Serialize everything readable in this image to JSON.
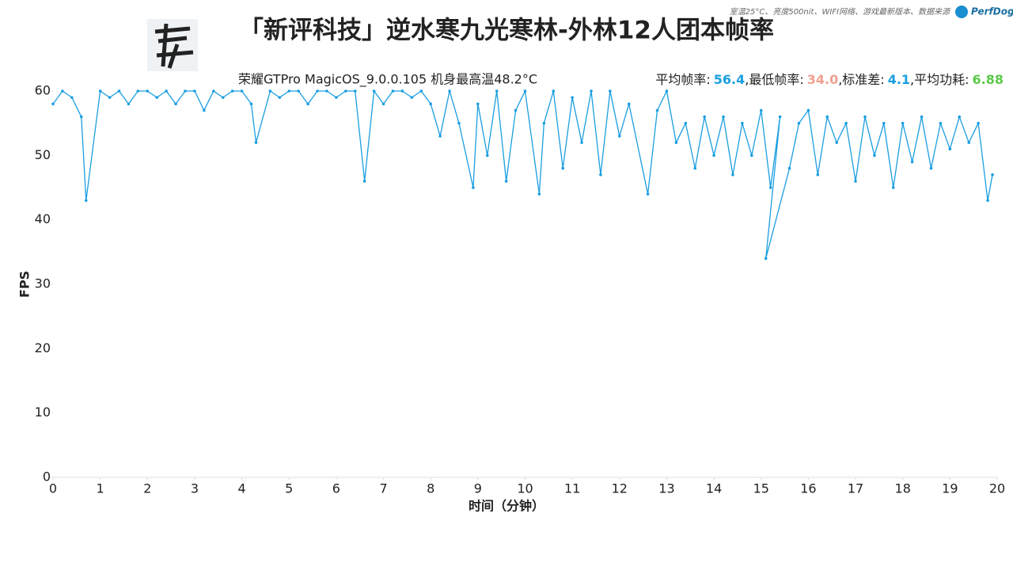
{
  "chart_data": {
    "type": "line",
    "title": "「新评科技」逆水寒九光寒林-外林12人团本帧率",
    "subtitle": "荣耀GTPro MagicOS_9.0.0.105 机身最高温48.2°C",
    "note": "室温25°C、亮度500nit、WIFI网络、游戏最新版本、数据来源",
    "brand": "PerfDog",
    "stats": [
      {
        "label": "平均帧率:",
        "value": 56.4,
        "color": "#1a9ee0"
      },
      {
        "label": ",最低帧率:",
        "value": {
          "value": 34,
          "label": "34.0"
        },
        "color": "#f0a090"
      },
      {
        "label": ",标准差:",
        "value": 4.1,
        "color": "#1a9ee0"
      },
      {
        "label": ",平均功耗:",
        "value": 6.88,
        "color": "#5cc94a"
      }
    ],
    "x_label": "时间（分钟）",
    "y_label": "FPS",
    "x": [
      0,
      0.2,
      0.4,
      0.6,
      0.7,
      1,
      1.2,
      1.4,
      1.6,
      1.8,
      2,
      2.2,
      2.4,
      2.6,
      2.8,
      3,
      3.2,
      3.4,
      3.6,
      3.8,
      4,
      4.2,
      4.3,
      4.6,
      4.8,
      5,
      5.2,
      5.4,
      5.6,
      5.8,
      6,
      6.2,
      6.4,
      6.6,
      6.8,
      7,
      7.2,
      7.4,
      7.6,
      7.8,
      8,
      8.2,
      8.4,
      8.6,
      8.9,
      9.0,
      9.2,
      9.4,
      9.6,
      9.8,
      10,
      10.3,
      10.4,
      10.6,
      10.8,
      11,
      11.2,
      11.4,
      11.6,
      11.8,
      12,
      12.2,
      12.6,
      12.8,
      13,
      13.2,
      13.4,
      13.6,
      13.8,
      14,
      14.2,
      14.4,
      14.6,
      14.8,
      15,
      15.2,
      15.4,
      15.1,
      15.6,
      15.8,
      16,
      16.2,
      16.4,
      16.6,
      16.8,
      17,
      17.2,
      17.4,
      17.6,
      17.8,
      18,
      18.2,
      18.4,
      18.6,
      18.8,
      19,
      19.2,
      19.4,
      19.6,
      19.8,
      19.9
    ],
    "series": [
      {
        "name": "FPS",
        "color": "#1a9ee0",
        "values": [
          58,
          60,
          59,
          56,
          43,
          60,
          59,
          60,
          58,
          60,
          60,
          59,
          60,
          58,
          60,
          60,
          57,
          60,
          59,
          60,
          60,
          58,
          52,
          60,
          59,
          60,
          60,
          58,
          60,
          60,
          59,
          60,
          60,
          46,
          60,
          58,
          60,
          60,
          59,
          60,
          58,
          53,
          60,
          55,
          45,
          58,
          50,
          60,
          46,
          57,
          60,
          44,
          55,
          60,
          48,
          59,
          52,
          60,
          47,
          60,
          53,
          58,
          44,
          57,
          60,
          52,
          55,
          48,
          56,
          50,
          56,
          47,
          55,
          50,
          57,
          45,
          56,
          34,
          48,
          55,
          57,
          47,
          56,
          52,
          55,
          46,
          56,
          50,
          55,
          45,
          55,
          49,
          56,
          48,
          55,
          51,
          56,
          52,
          55,
          43,
          47
        ]
      }
    ],
    "xlim": [
      0,
      20
    ],
    "ylim": [
      0,
      60
    ],
    "xticks": [
      0,
      1,
      2,
      3,
      4,
      5,
      6,
      7,
      8,
      9,
      10,
      11,
      12,
      13,
      14,
      15,
      16,
      17,
      18,
      19,
      20
    ],
    "yticks": [
      0,
      10,
      20,
      30,
      40,
      50,
      60
    ]
  }
}
